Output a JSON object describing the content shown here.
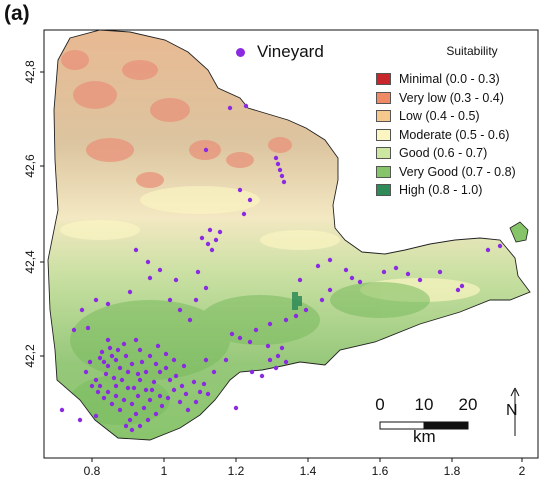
{
  "panel_label": "(a)",
  "vineyard_key": {
    "label": "Vineyard",
    "color": "#8a2be2"
  },
  "legend": {
    "title": "Suitability",
    "classes": [
      {
        "label": "Minimal (0.0 - 0.3)",
        "color": "#c8262b"
      },
      {
        "label": "Very low (0.3 - 0.4)",
        "color": "#f08a64"
      },
      {
        "label": "Low (0.4 - 0.5)",
        "color": "#f6c88c"
      },
      {
        "label": "Moderate (0.5 - 0.6)",
        "color": "#fbf5c2"
      },
      {
        "label": "Good (0.6 - 0.7)",
        "color": "#cde6a0"
      },
      {
        "label": "Very Good (0.7 - 0.8)",
        "color": "#86c46a"
      },
      {
        "label": "High (0.8 - 1.0)",
        "color": "#2e8b57"
      }
    ]
  },
  "axes": {
    "x_ticks": [
      "0.8",
      "1",
      "1.2",
      "1.4",
      "1.6",
      "1.8",
      "2"
    ],
    "y_ticks": [
      "42,2",
      "42,4",
      "42,6",
      "42,8"
    ]
  },
  "scale_bar": {
    "ticks": [
      "0",
      "10",
      "20"
    ],
    "unit": "km"
  },
  "north_arrow": {
    "label": "N"
  }
}
